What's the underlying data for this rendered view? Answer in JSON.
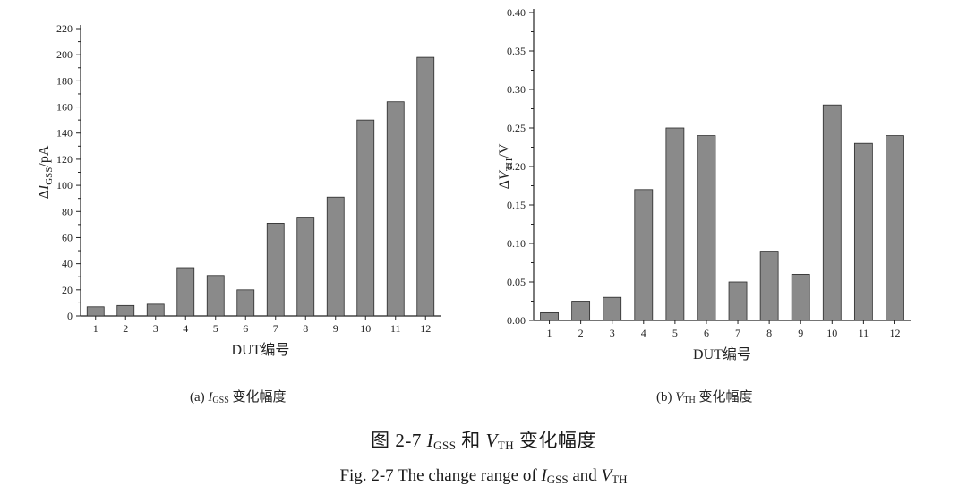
{
  "chart_data": [
    {
      "type": "bar",
      "id": "a",
      "categories": [
        "1",
        "2",
        "3",
        "4",
        "5",
        "6",
        "7",
        "8",
        "9",
        "10",
        "11",
        "12"
      ],
      "values": [
        7,
        8,
        9,
        37,
        31,
        20,
        71,
        75,
        91,
        150,
        164,
        198
      ],
      "ylabel": "ΔI_GSS/pA",
      "ylabel_parts": {
        "delta": "Δ",
        "var": "I",
        "sub": "GSS",
        "unit": "/pA"
      },
      "xlabel": "DUT编号",
      "ylim": [
        0,
        220
      ],
      "yticks": [
        "0",
        "20",
        "40",
        "60",
        "80",
        "100",
        "120",
        "140",
        "160",
        "180",
        "200",
        "220"
      ],
      "ytick_values": [
        0,
        20,
        40,
        60,
        80,
        100,
        120,
        140,
        160,
        180,
        200,
        220
      ],
      "grid": false
    },
    {
      "type": "bar",
      "id": "b",
      "categories": [
        "1",
        "2",
        "3",
        "4",
        "5",
        "6",
        "7",
        "8",
        "9",
        "10",
        "11",
        "12"
      ],
      "values": [
        0.01,
        0.025,
        0.03,
        0.17,
        0.25,
        0.24,
        0.05,
        0.09,
        0.06,
        0.28,
        0.23,
        0.24
      ],
      "ylabel": "ΔV_TH/V",
      "ylabel_parts": {
        "delta": "Δ",
        "var": "V",
        "sub": "TH",
        "unit": "/V"
      },
      "xlabel": "DUT编号",
      "ylim": [
        0,
        0.4
      ],
      "yticks": [
        "0.00",
        "0.05",
        "0.10",
        "0.15",
        "0.20",
        "0.25",
        "0.30",
        "0.35",
        "0.40"
      ],
      "ytick_values": [
        0,
        0.05,
        0.1,
        0.15,
        0.2,
        0.25,
        0.3,
        0.35,
        0.4
      ],
      "grid": false
    }
  ],
  "captions": {
    "a": {
      "prefix": "(a) ",
      "var": "I",
      "sub": "GSS",
      "suffix": " 变化幅度"
    },
    "b": {
      "prefix": "(b) ",
      "var": "V",
      "sub": "TH",
      "suffix": " 变化幅度"
    },
    "figure_cn": {
      "prefix": "图  2-7 ",
      "var1": "I",
      "sub1": "GSS",
      "mid": " 和 ",
      "var2": "V",
      "sub2": "TH",
      "suffix": " 变化幅度"
    },
    "figure_en": {
      "prefix": "Fig. 2-7 The change range of ",
      "var1": "I",
      "sub1": "GSS",
      "mid": " and ",
      "var2": "V",
      "sub2": "TH"
    }
  },
  "colors": {
    "bar_fill": "#8a8a8a",
    "bar_stroke": "#2a2a2a",
    "axis": "#222222"
  }
}
